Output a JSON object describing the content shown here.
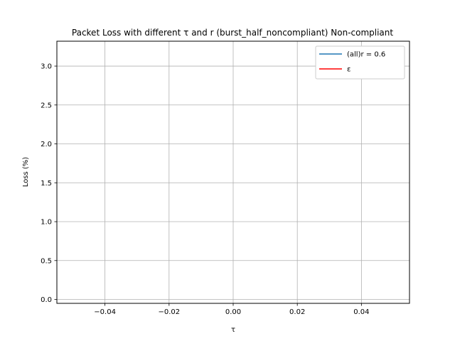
{
  "chart_data": {
    "type": "line",
    "title": "Packet Loss with different τ and r (burst_half_noncompliant) Non-compliant",
    "xlabel": "τ",
    "ylabel": "Loss (%)",
    "xlim": [
      -0.055,
      0.055
    ],
    "ylim": [
      -0.05,
      3.32
    ],
    "xticks": [
      -0.04,
      -0.02,
      0.0,
      0.02,
      0.04
    ],
    "xtick_labels": [
      "−0.04",
      "−0.02",
      "0.00",
      "0.02",
      "0.04"
    ],
    "yticks": [
      0.0,
      0.5,
      1.0,
      1.5,
      2.0,
      2.5,
      3.0
    ],
    "ytick_labels": [
      "0.0",
      "0.5",
      "1.0",
      "1.5",
      "2.0",
      "2.5",
      "3.0"
    ],
    "grid": true,
    "legend_position": "top-right",
    "series": [
      {
        "name": "(all)r = 0.6",
        "color": "#1f77b4",
        "x": [],
        "y": []
      },
      {
        "name": "ε",
        "color": "#ff0000",
        "x": [],
        "y": []
      }
    ]
  }
}
